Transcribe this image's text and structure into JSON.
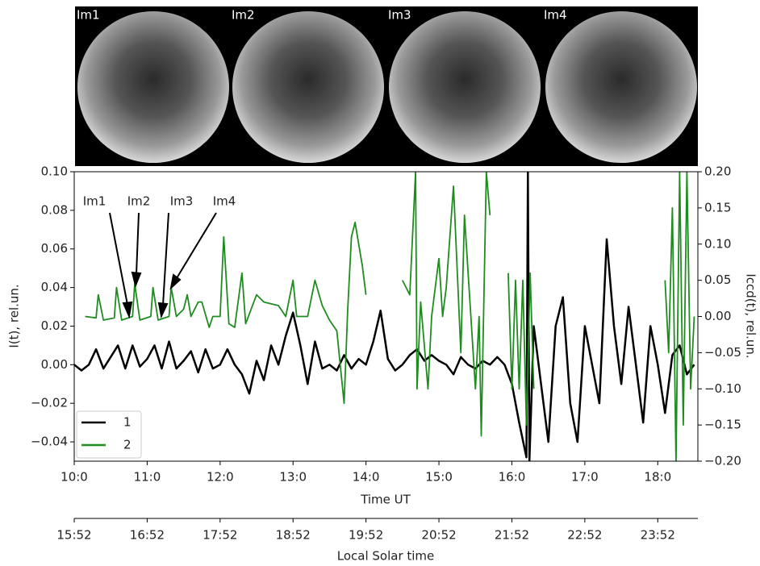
{
  "images": [
    "Im1",
    "Im2",
    "Im3",
    "Im4"
  ],
  "chart_data": {
    "type": "line",
    "annotations": [
      "Im1",
      "Im2",
      "Im3",
      "Im4"
    ],
    "xlabel": "Time UT",
    "ylabel": "I(t), rel.un.",
    "y2label": "Iccd(t), rel.un.",
    "x2label": "Local Solar time",
    "xlim": [
      10,
      18.55
    ],
    "xticks": [
      {
        "value": 10,
        "label": "10:0"
      },
      {
        "value": 11,
        "label": "11:0"
      },
      {
        "value": 12,
        "label": "12:0"
      },
      {
        "value": 13,
        "label": "13:0"
      },
      {
        "value": 14,
        "label": "14:0"
      },
      {
        "value": 15,
        "label": "15:0"
      },
      {
        "value": 16,
        "label": "16:0"
      },
      {
        "value": 17,
        "label": "17:0"
      },
      {
        "value": 18,
        "label": "18:0"
      }
    ],
    "x2lim": [
      15.8667,
      24.4167
    ],
    "x2ticks": [
      {
        "value": 15.8667,
        "label": "15:52"
      },
      {
        "value": 16.8667,
        "label": "16:52"
      },
      {
        "value": 17.8667,
        "label": "17:52"
      },
      {
        "value": 18.8667,
        "label": "18:52"
      },
      {
        "value": 19.8667,
        "label": "19:52"
      },
      {
        "value": 20.8667,
        "label": "20:52"
      },
      {
        "value": 21.8667,
        "label": "21:52"
      },
      {
        "value": 22.8667,
        "label": "22:52"
      },
      {
        "value": 23.8667,
        "label": "23:52"
      }
    ],
    "ylim": [
      -0.05,
      0.1
    ],
    "yticks": [
      {
        "value": -0.04,
        "label": "−0.04"
      },
      {
        "value": -0.02,
        "label": "−0.02"
      },
      {
        "value": 0,
        "label": "0.00"
      },
      {
        "value": 0.02,
        "label": "0.02"
      },
      {
        "value": 0.04,
        "label": "0.04"
      },
      {
        "value": 0.06,
        "label": "0.06"
      },
      {
        "value": 0.08,
        "label": "0.08"
      },
      {
        "value": 0.1,
        "label": "0.10"
      }
    ],
    "y2lim": [
      -0.2,
      0.2
    ],
    "y2ticks": [
      {
        "value": -0.2,
        "label": "−0.20"
      },
      {
        "value": -0.15,
        "label": "−0.15"
      },
      {
        "value": -0.1,
        "label": "−0.10"
      },
      {
        "value": -0.05,
        "label": "−0.05"
      },
      {
        "value": 0,
        "label": "0.00"
      },
      {
        "value": 0.05,
        "label": "0.05"
      },
      {
        "value": 0.1,
        "label": "0.10"
      },
      {
        "value": 0.15,
        "label": "0.15"
      },
      {
        "value": 0.2,
        "label": "0.20"
      }
    ],
    "legend": "lower left",
    "series": [
      {
        "name": "1",
        "color": "#000000",
        "x": [
          10.0,
          10.1,
          10.2,
          10.3,
          10.4,
          10.5,
          10.6,
          10.7,
          10.8,
          10.9,
          11.0,
          11.1,
          11.2,
          11.3,
          11.4,
          11.5,
          11.6,
          11.7,
          11.8,
          11.9,
          12.0,
          12.1,
          12.2,
          12.3,
          12.4,
          12.5,
          12.6,
          12.7,
          12.8,
          12.9,
          13.0,
          13.1,
          13.2,
          13.3,
          13.4,
          13.5,
          13.6,
          13.7,
          13.8,
          13.9,
          14.0,
          14.1,
          14.2,
          14.3,
          14.4,
          14.5,
          14.6,
          14.7,
          14.8,
          14.9,
          15.0,
          15.1,
          15.2,
          15.3,
          15.4,
          15.5,
          15.6,
          15.7,
          15.8,
          15.9,
          16.0,
          16.1,
          16.2,
          16.22,
          16.24,
          16.3,
          16.4,
          16.5,
          16.6,
          16.7,
          16.8,
          16.9,
          17.0,
          17.1,
          17.2,
          17.3,
          17.4,
          17.5,
          17.6,
          17.7,
          17.8,
          17.9,
          18.0,
          18.1,
          18.2,
          18.3,
          18.4,
          18.5
        ],
        "values": [
          0.0,
          -0.003,
          0.0,
          0.008,
          -0.002,
          0.004,
          0.01,
          -0.002,
          0.01,
          -0.001,
          0.003,
          0.01,
          -0.002,
          0.012,
          -0.002,
          0.002,
          0.007,
          -0.004,
          0.008,
          -0.002,
          0.0,
          0.008,
          0.0,
          -0.005,
          -0.015,
          0.002,
          -0.008,
          0.01,
          0.0,
          0.015,
          0.027,
          0.01,
          -0.01,
          0.012,
          -0.002,
          0.0,
          -0.003,
          0.005,
          -0.002,
          0.003,
          0.0,
          0.012,
          0.028,
          0.003,
          -0.003,
          0.0,
          0.005,
          0.008,
          0.002,
          0.005,
          0.002,
          0.0,
          -0.005,
          0.004,
          0.0,
          -0.002,
          0.002,
          0.0,
          0.004,
          0.0,
          -0.01,
          -0.03,
          -0.048,
          0.1,
          -0.05,
          0.02,
          -0.01,
          -0.04,
          0.02,
          0.035,
          -0.02,
          -0.04,
          0.02,
          0.0,
          -0.02,
          0.065,
          0.02,
          -0.01,
          0.03,
          0.0,
          -0.03,
          0.02,
          0.0,
          -0.025,
          0.005,
          0.01,
          -0.005,
          0.0
        ]
      },
      {
        "name": "2",
        "color": "#1f8c1f",
        "axis": "y2",
        "x": [
          10.15,
          10.3,
          10.33,
          10.4,
          10.55,
          10.58,
          10.65,
          10.8,
          10.83,
          10.9,
          11.05,
          11.08,
          11.15,
          11.3,
          11.33,
          11.4,
          11.5,
          11.55,
          11.6,
          11.7,
          11.75,
          11.85,
          11.9,
          12.0,
          12.05,
          12.12,
          12.2,
          12.3,
          12.35,
          12.5,
          12.6,
          12.8,
          12.9,
          13.0,
          13.05,
          13.2,
          13.3,
          13.4,
          13.5,
          13.6,
          13.7,
          13.75,
          13.8,
          13.85,
          13.95,
          14.0,
          14.25,
          14.5,
          14.6,
          14.68,
          14.7,
          14.75,
          14.85,
          14.9,
          15.0,
          15.05,
          15.1,
          15.2,
          15.3,
          15.35,
          15.5,
          15.55,
          15.58,
          15.65,
          15.7,
          15.8,
          15.95,
          16.0,
          16.05,
          16.1,
          16.15,
          16.2,
          16.25,
          16.3,
          17.2,
          18.1,
          18.15,
          18.2,
          18.25,
          18.3,
          18.35,
          18.4,
          18.45,
          18.5
        ],
        "values": [
          0.0,
          -0.002,
          0.03,
          -0.005,
          -0.002,
          0.04,
          -0.005,
          0.0,
          0.045,
          -0.005,
          0.0,
          0.04,
          -0.005,
          0.0,
          0.04,
          0.0,
          0.01,
          0.03,
          0.0,
          0.02,
          0.02,
          -0.015,
          0.0,
          0.0,
          0.11,
          -0.01,
          -0.015,
          0.06,
          -0.01,
          0.03,
          0.02,
          0.015,
          0.0,
          0.05,
          0.0,
          0.0,
          0.05,
          0.015,
          -0.005,
          -0.02,
          -0.12,
          0.01,
          0.11,
          0.13,
          0.07,
          0.03,
          null,
          0.05,
          0.03,
          0.2,
          -0.1,
          0.02,
          -0.1,
          0.0,
          0.08,
          0.0,
          0.04,
          0.18,
          -0.05,
          0.14,
          -0.1,
          0.0,
          -0.165,
          0.2,
          0.14,
          null,
          0.06,
          -0.1,
          0.05,
          -0.1,
          0.05,
          -0.15,
          0.06,
          -0.1,
          null,
          0.05,
          -0.05,
          0.15,
          -0.2,
          0.2,
          -0.15,
          0.2,
          -0.1,
          0.0
        ]
      }
    ]
  }
}
